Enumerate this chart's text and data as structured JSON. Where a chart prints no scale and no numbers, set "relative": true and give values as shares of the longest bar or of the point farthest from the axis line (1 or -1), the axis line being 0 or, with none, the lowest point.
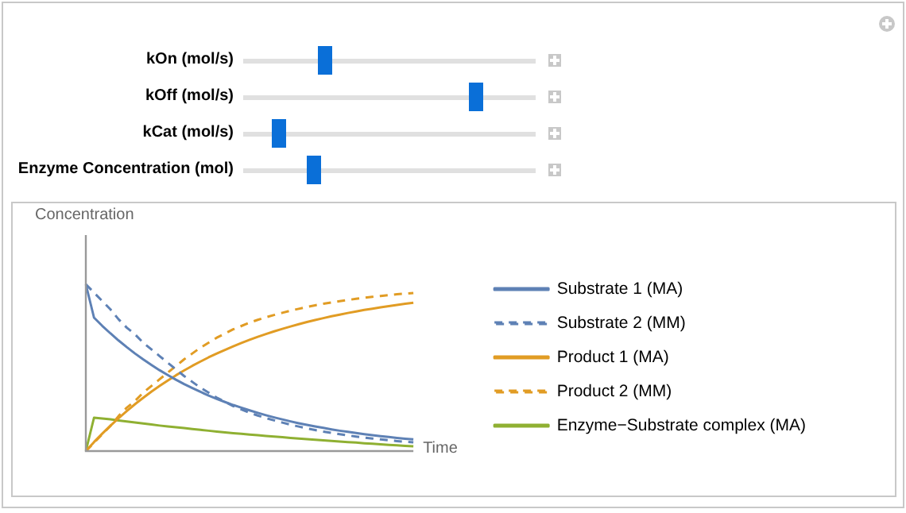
{
  "chart_data": {
    "type": "line",
    "relative": true,
    "xlabel": "Time",
    "ylabel": "Concentration",
    "legend": "right",
    "marker": "none",
    "grid": false,
    "annotations": [
      "kOn (mol/s)",
      "kOff (mol/s)",
      "kCat (mol/s)",
      "Enzyme Concentration (mol)"
    ],
    "categories": [
      null,
      null,
      null,
      null,
      null,
      null,
      null,
      null,
      null,
      null,
      null,
      null,
      null,
      null,
      null,
      null,
      null,
      null,
      null,
      null,
      null,
      null,
      null,
      null,
      null,
      null,
      null,
      null,
      null,
      null,
      null,
      null,
      null,
      null,
      null,
      null,
      null,
      null,
      null,
      null,
      null
    ],
    "series": [
      {
        "name": "Substrate 1 (MA)",
        "color": "#5e81b5",
        "line_style": "solid",
        "values": [
          1.0,
          0.8,
          0.751,
          0.706,
          0.663,
          0.623,
          0.585,
          0.55,
          0.517,
          0.485,
          0.456,
          0.428,
          0.402,
          0.378,
          0.355,
          0.333,
          0.313,
          0.294,
          0.276,
          0.26,
          0.244,
          0.229,
          0.215,
          0.202,
          0.19,
          0.178,
          0.167,
          0.157,
          0.148,
          0.139,
          0.13,
          0.122,
          0.115,
          0.108,
          0.101,
          0.095,
          0.089,
          0.084,
          0.079,
          0.074,
          0.07
        ]
      },
      {
        "name": "Substrate 2 (MM)",
        "color": "#5e81b5",
        "line_style": "dashed",
        "values": [
          1.0,
          0.95,
          0.9,
          0.85,
          0.79,
          0.74,
          0.7,
          0.65,
          0.61,
          0.57,
          0.53,
          0.49,
          0.45,
          0.415,
          0.38,
          0.35,
          0.32,
          0.295,
          0.27,
          0.25,
          0.23,
          0.213,
          0.198,
          0.184,
          0.171,
          0.158,
          0.147,
          0.136,
          0.126,
          0.117,
          0.109,
          0.101,
          0.094,
          0.087,
          0.081,
          0.075,
          0.07,
          0.065,
          0.06,
          0.056,
          0.052
        ]
      },
      {
        "name": "Product 1 (MA)",
        "color": "#e19c24",
        "line_style": "solid",
        "values": [
          0,
          0.054,
          0.104,
          0.152,
          0.197,
          0.24,
          0.281,
          0.319,
          0.356,
          0.39,
          0.423,
          0.454,
          0.483,
          0.511,
          0.537,
          0.562,
          0.585,
          0.607,
          0.628,
          0.648,
          0.667,
          0.685,
          0.702,
          0.718,
          0.733,
          0.747,
          0.761,
          0.774,
          0.786,
          0.797,
          0.808,
          0.818,
          0.828,
          0.837,
          0.846,
          0.854,
          0.862,
          0.869,
          0.876,
          0.883,
          0.889
        ]
      },
      {
        "name": "Product 2 (MM)",
        "color": "#e19c24",
        "line_style": "dashed",
        "values": [
          0,
          0.05,
          0.1,
          0.15,
          0.21,
          0.26,
          0.3,
          0.35,
          0.39,
          0.43,
          0.47,
          0.51,
          0.55,
          0.585,
          0.62,
          0.65,
          0.68,
          0.705,
          0.73,
          0.75,
          0.77,
          0.787,
          0.802,
          0.816,
          0.829,
          0.842,
          0.853,
          0.864,
          0.874,
          0.883,
          0.891,
          0.899,
          0.906,
          0.913,
          0.919,
          0.925,
          0.93,
          0.935,
          0.94,
          0.944,
          0.948
        ]
      },
      {
        "name": "Enzyme−Substrate complex (MA)",
        "color": "#8fb032",
        "line_style": "solid",
        "values": [
          0,
          0.2,
          0.195,
          0.19,
          0.183,
          0.177,
          0.171,
          0.165,
          0.159,
          0.153,
          0.148,
          0.143,
          0.138,
          0.132,
          0.127,
          0.122,
          0.117,
          0.112,
          0.107,
          0.103,
          0.099,
          0.095,
          0.091,
          0.087,
          0.083,
          0.079,
          0.075,
          0.071,
          0.068,
          0.064,
          0.061,
          0.057,
          0.054,
          0.051,
          0.047,
          0.044,
          0.041,
          0.037,
          0.034,
          0.031,
          0.028
        ]
      }
    ]
  }
}
